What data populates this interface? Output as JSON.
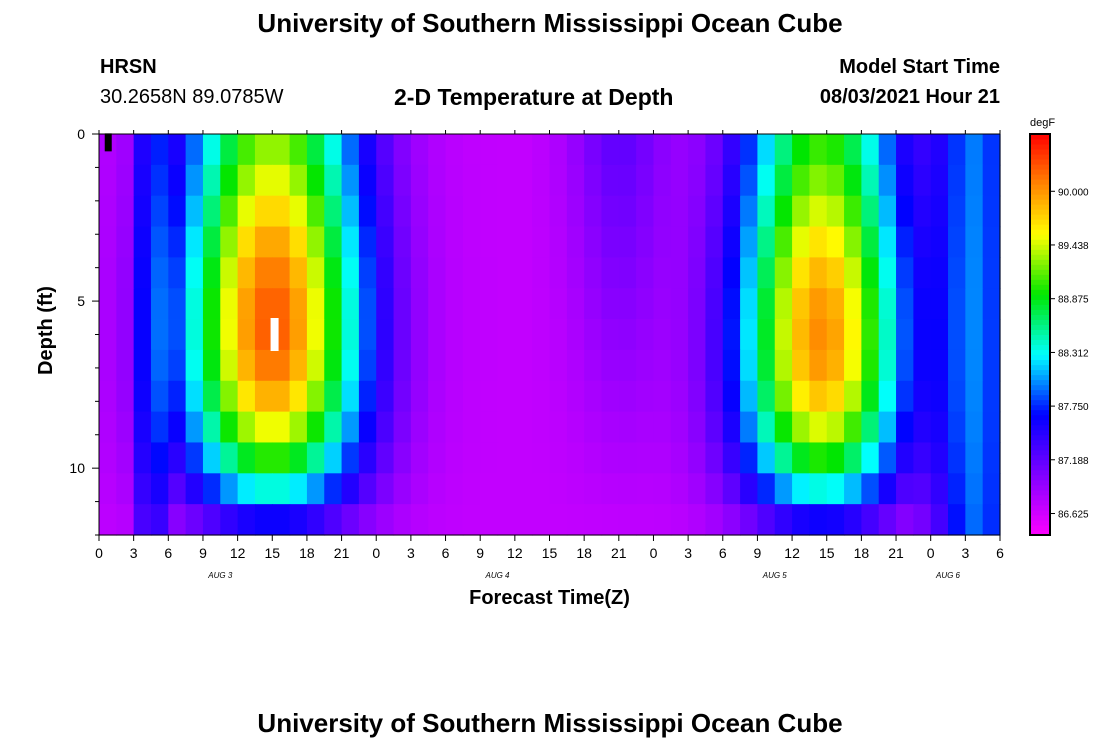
{
  "header": {
    "title": "University of Southern Mississippi Ocean Cube",
    "station_code": "HRSN",
    "station_coords": "30.2658N  89.0785W",
    "chart_title": "2-D Temperature at Depth",
    "model_start_label": "Model Start Time",
    "model_start_value": "08/03/2021 Hour 21"
  },
  "footer": {
    "title": "University of Southern Mississippi Ocean Cube"
  },
  "chart_data": {
    "type": "heatmap",
    "title": "2-D Temperature at Depth",
    "xlabel": "Forecast Time(Z)",
    "ylabel": "Depth (ft)",
    "x_hours_range": [
      0,
      78
    ],
    "y_depth_range": [
      0,
      12
    ],
    "x_tick_labels": [
      "0",
      "3",
      "6",
      "9",
      "12",
      "15",
      "18",
      "21",
      "0",
      "3",
      "6",
      "9",
      "12",
      "15",
      "18",
      "21",
      "0",
      "3",
      "6",
      "9",
      "12",
      "15",
      "18",
      "21",
      "0",
      "3",
      "6"
    ],
    "y_tick_values": [
      0,
      5,
      10
    ],
    "date_labels": [
      {
        "text": "AUG 3",
        "hour": 10.5
      },
      {
        "text": "AUG 4",
        "hour": 34.5
      },
      {
        "text": "AUG 5",
        "hour": 58.5
      },
      {
        "text": "AUG 6",
        "hour": 73.5
      }
    ],
    "colorbar": {
      "unit": "degF",
      "min": 86.4,
      "max": 90.6,
      "tick_values": [
        86.625,
        87.188,
        87.75,
        88.312,
        88.875,
        89.438,
        90.0
      ],
      "tick_labels": [
        "86.625",
        "87.188",
        "87.750",
        "88.312",
        "88.875",
        "89.438",
        "90.000"
      ]
    },
    "markers": [
      {
        "name": "observation-marker-surface",
        "hour": 0.8,
        "depth": 0.25,
        "color": "#000000"
      },
      {
        "name": "observation-marker-mid",
        "hour": 15.2,
        "depth": 6.0,
        "color": "#ffffff"
      }
    ]
  }
}
